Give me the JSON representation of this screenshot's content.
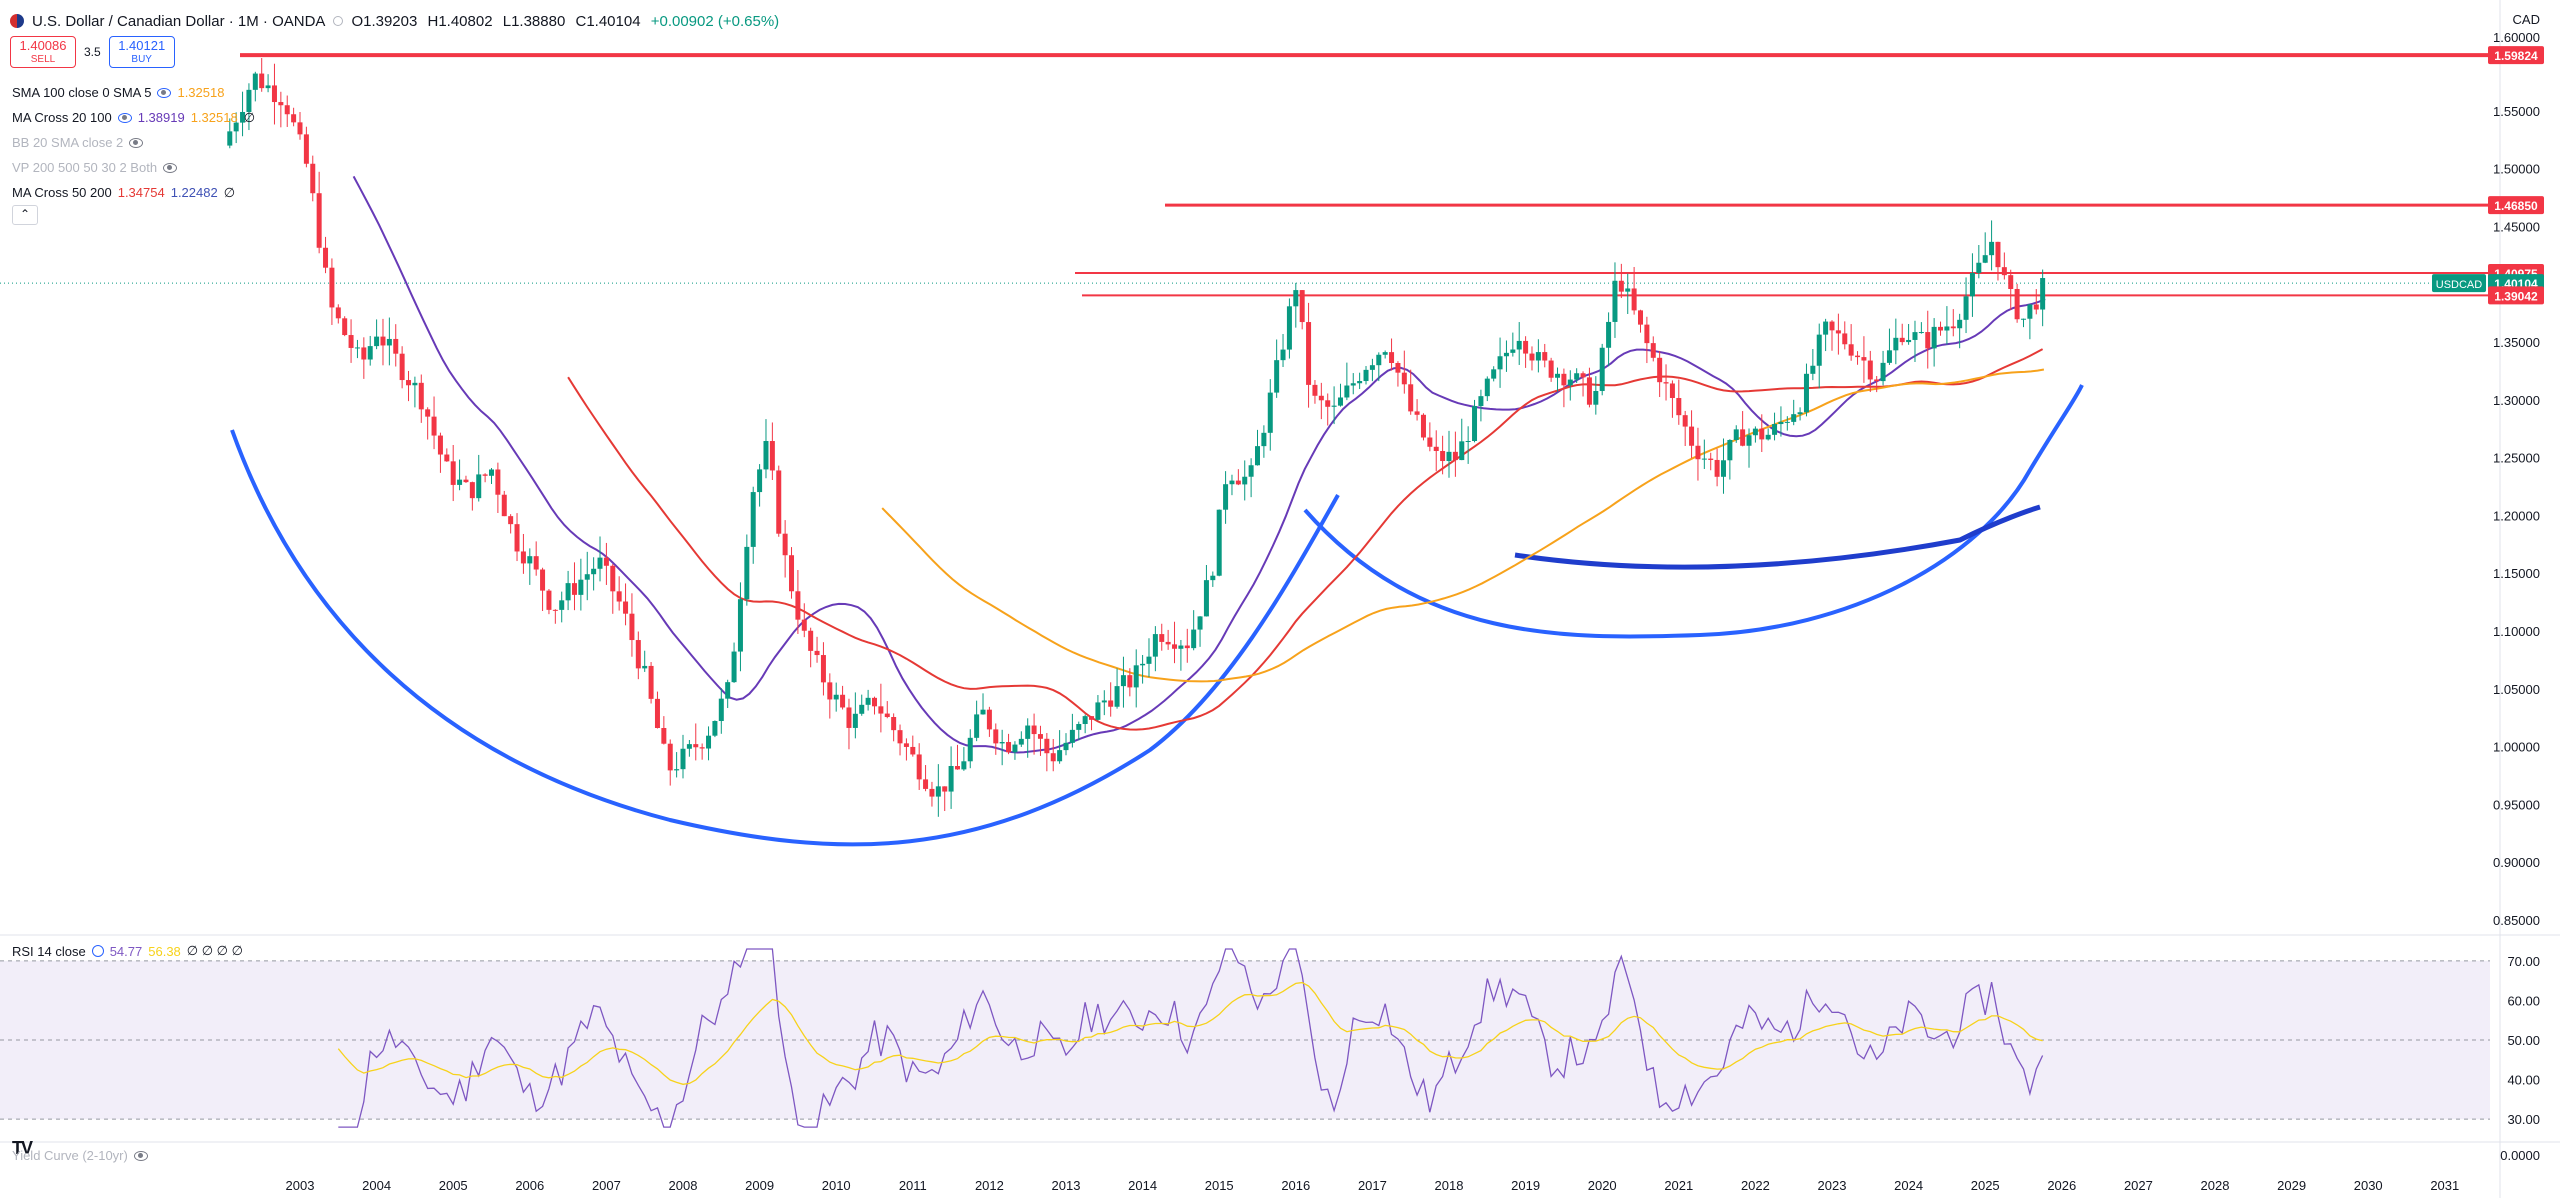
{
  "header": {
    "symbol_title": "U.S. Dollar / Canadian Dollar · 1M · OANDA",
    "open": "O1.39203",
    "high": "H1.40802",
    "low": "L1.38880",
    "close": "C1.40104",
    "change": "+0.00902 (+0.65%)",
    "currency": "CAD"
  },
  "trade": {
    "sell_price": "1.40086",
    "sell_label": "SELL",
    "spread": "3.5",
    "buy_price": "1.40121",
    "buy_label": "BUY"
  },
  "indicators": [
    {
      "name": "SMA 100 close 0 SMA 5",
      "v1": "1.32518",
      "v1_color": "#f7a21b",
      "v2": "",
      "v2_color": "",
      "muted": false
    },
    {
      "name": "MA Cross 20 100",
      "v1": "1.38919",
      "v1_color": "#673ab7",
      "v2": "1.32518",
      "v2_color": "#f7a21b",
      "muted": false
    },
    {
      "name": "BB 20 SMA close 2",
      "v1": "",
      "v1_color": "",
      "v2": "",
      "v2_color": "",
      "muted": true
    },
    {
      "name": "VP 200 500 50 30 2 Both",
      "v1": "",
      "v1_color": "",
      "v2": "",
      "v2_color": "",
      "muted": true
    },
    {
      "name": "MA Cross 50 200",
      "v1": "1.34754",
      "v1_color": "#e53935",
      "v2": "1.22482",
      "v2_color": "#3f51b5",
      "muted": false
    }
  ],
  "rsi_legend": {
    "name": "RSI 14 close",
    "value": "54.77",
    "ma_value": "56.38",
    "extra": "∅ ∅ ∅ ∅"
  },
  "yield_legend": {
    "name": "Yield Curve (2-10yr)"
  },
  "price_axis": {
    "ticks": [
      "1.55000",
      "1.50000",
      "1.45000",
      "1.35000",
      "1.30000",
      "1.25000",
      "1.20000",
      "1.15000",
      "1.10000",
      "1.05000",
      "1.00000",
      "0.95000",
      "0.90000",
      "0.85000"
    ],
    "top_partial": "1.60000",
    "labels": [
      {
        "text": "1.59824",
        "color": "#f23645"
      },
      {
        "text": "1.46850",
        "color": "#f23645"
      },
      {
        "text": "1.40975",
        "color": "#f23645"
      },
      {
        "text": "1.40104",
        "color": "#089981",
        "tag": "USDCAD"
      },
      {
        "text": "1.39042",
        "color": "#f23645"
      }
    ]
  },
  "rsi_axis": {
    "ticks": [
      "70.00",
      "60.00",
      "50.00",
      "40.00",
      "30.00"
    ]
  },
  "yield_axis": {
    "ticks": [
      "0.0000"
    ]
  },
  "time_axis": {
    "years": [
      "2003",
      "2004",
      "2005",
      "2006",
      "2007",
      "2008",
      "2009",
      "2010",
      "2011",
      "2012",
      "2013",
      "2014",
      "2015",
      "2016",
      "2017",
      "2018",
      "2019",
      "2020",
      "2021",
      "2022",
      "2023",
      "2024",
      "2025",
      "2026",
      "2027",
      "2028",
      "2029",
      "2030",
      "2031"
    ]
  },
  "chart_data": {
    "type": "candlestick",
    "x_axis": "year",
    "y_range": [
      0.85,
      1.62
    ],
    "horizontal_levels": [
      1.59824,
      1.4685,
      1.40975,
      1.39042
    ],
    "last_price": 1.40104,
    "price_path": [
      [
        2002.0,
        1.52
      ],
      [
        2002.4,
        1.58
      ],
      [
        2002.8,
        1.56
      ],
      [
        2003.1,
        1.5
      ],
      [
        2003.4,
        1.38
      ],
      [
        2003.8,
        1.33
      ],
      [
        2004.0,
        1.36
      ],
      [
        2004.3,
        1.33
      ],
      [
        2004.6,
        1.3
      ],
      [
        2004.9,
        1.24
      ],
      [
        2005.2,
        1.22
      ],
      [
        2005.5,
        1.24
      ],
      [
        2005.8,
        1.18
      ],
      [
        2006.0,
        1.16
      ],
      [
        2006.3,
        1.12
      ],
      [
        2006.6,
        1.14
      ],
      [
        2006.9,
        1.16
      ],
      [
        2007.2,
        1.12
      ],
      [
        2007.5,
        1.06
      ],
      [
        2007.8,
        0.98
      ],
      [
        2008.0,
        0.99
      ],
      [
        2008.3,
        1.01
      ],
      [
        2008.6,
        1.05
      ],
      [
        2008.9,
        1.22
      ],
      [
        2009.1,
        1.26
      ],
      [
        2009.3,
        1.17
      ],
      [
        2009.6,
        1.09
      ],
      [
        2009.9,
        1.05
      ],
      [
        2010.2,
        1.02
      ],
      [
        2010.5,
        1.04
      ],
      [
        2010.8,
        1.01
      ],
      [
        2011.0,
        0.99
      ],
      [
        2011.3,
        0.96
      ],
      [
        2011.6,
        0.98
      ],
      [
        2011.9,
        1.03
      ],
      [
        2012.2,
        1.0
      ],
      [
        2012.5,
        1.02
      ],
      [
        2012.8,
        0.99
      ],
      [
        2013.1,
        1.01
      ],
      [
        2013.5,
        1.04
      ],
      [
        2013.9,
        1.06
      ],
      [
        2014.2,
        1.1
      ],
      [
        2014.6,
        1.09
      ],
      [
        2014.9,
        1.15
      ],
      [
        2015.1,
        1.24
      ],
      [
        2015.4,
        1.23
      ],
      [
        2015.7,
        1.31
      ],
      [
        2016.0,
        1.4
      ],
      [
        2016.2,
        1.3
      ],
      [
        2016.5,
        1.29
      ],
      [
        2016.9,
        1.33
      ],
      [
        2017.2,
        1.35
      ],
      [
        2017.5,
        1.29
      ],
      [
        2017.8,
        1.25
      ],
      [
        2018.1,
        1.25
      ],
      [
        2018.5,
        1.31
      ],
      [
        2018.9,
        1.36
      ],
      [
        2019.2,
        1.33
      ],
      [
        2019.6,
        1.32
      ],
      [
        2019.9,
        1.3
      ],
      [
        2020.2,
        1.41
      ],
      [
        2020.5,
        1.36
      ],
      [
        2020.9,
        1.3
      ],
      [
        2021.2,
        1.26
      ],
      [
        2021.5,
        1.24
      ],
      [
        2021.8,
        1.27
      ],
      [
        2022.2,
        1.27
      ],
      [
        2022.6,
        1.3
      ],
      [
        2022.9,
        1.36
      ],
      [
        2023.2,
        1.35
      ],
      [
        2023.6,
        1.32
      ],
      [
        2023.9,
        1.36
      ],
      [
        2024.2,
        1.35
      ],
      [
        2024.6,
        1.37
      ],
      [
        2024.9,
        1.41
      ],
      [
        2025.1,
        1.44
      ],
      [
        2025.3,
        1.39
      ],
      [
        2025.5,
        1.37
      ],
      [
        2025.8,
        1.401
      ]
    ],
    "rsi_range": [
      30,
      72
    ],
    "rsi_levels": [
      70,
      50,
      30
    ]
  }
}
